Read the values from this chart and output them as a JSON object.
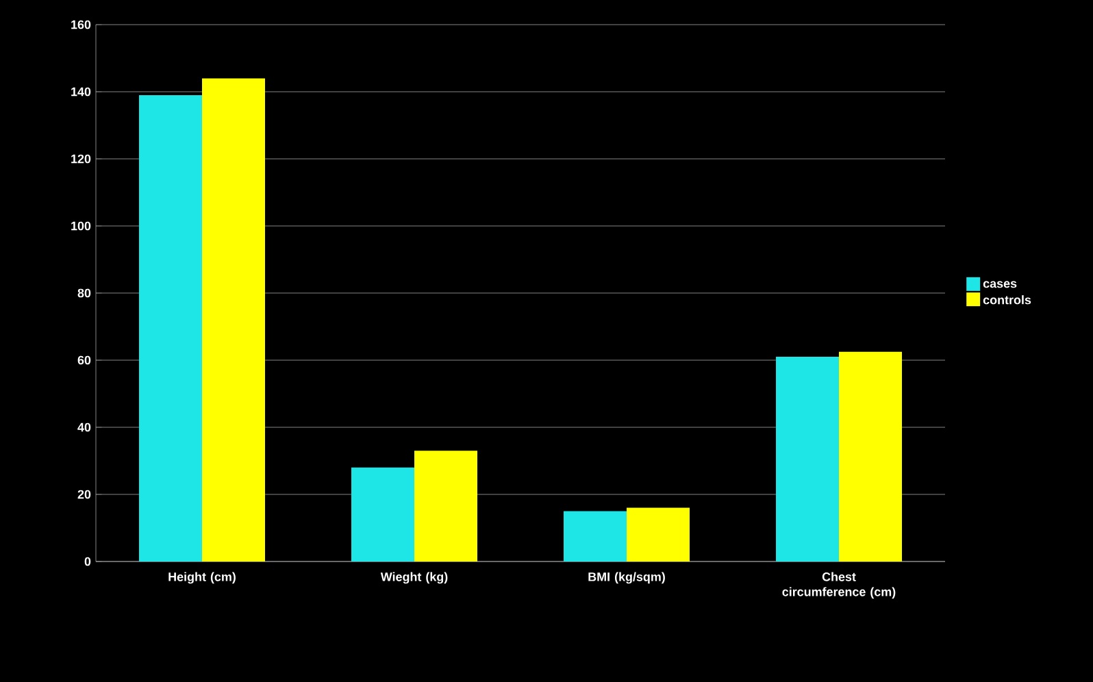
{
  "chart_data": {
    "type": "bar",
    "categories": [
      "Height (cm)",
      "Wieght (kg)",
      "BMI (kg/sqm)",
      "Chest circumference (cm)"
    ],
    "series": [
      {
        "name": "cases",
        "color": "#1ee6e6",
        "values": [
          139,
          28,
          15,
          61
        ]
      },
      {
        "name": "controls",
        "color": "#ffff00",
        "values": [
          144,
          33,
          16,
          62.5
        ]
      }
    ],
    "ylim": [
      0,
      160
    ],
    "yticks": [
      0,
      20,
      40,
      60,
      80,
      100,
      120,
      140,
      160
    ],
    "grid": "y",
    "legend": "right"
  }
}
